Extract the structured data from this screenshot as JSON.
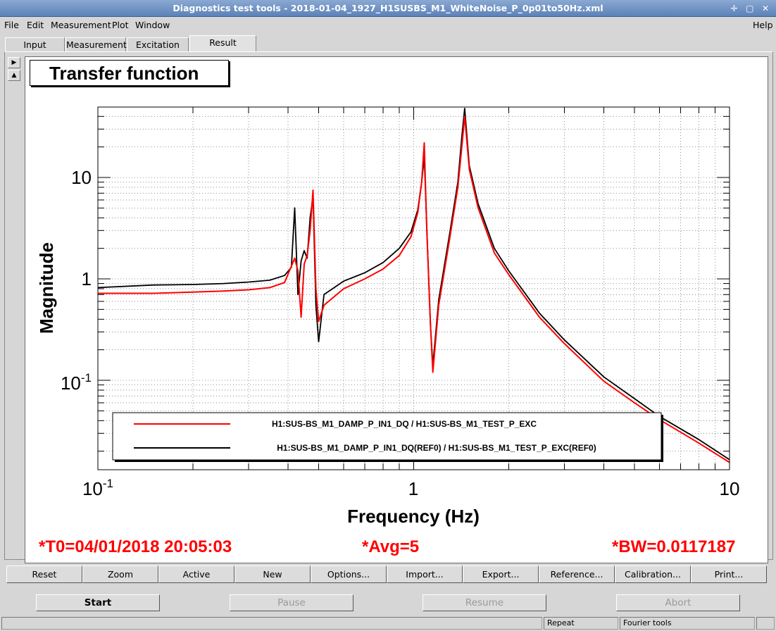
{
  "window": {
    "title": "Diagnostics test tools - 2018-01-04_1927_H1SUSBS_M1_WhiteNoise_P_0p01to50Hz.xml",
    "controls": [
      "✛",
      "▢",
      "✕"
    ]
  },
  "menu": {
    "file": "File",
    "edit": "Edit",
    "measurement": "Measurement",
    "plot": "Plot",
    "window": "Window",
    "help": "Help"
  },
  "tabs": [
    {
      "label": "Input"
    },
    {
      "label": "Measurement"
    },
    {
      "label": "Excitation"
    },
    {
      "label": "Result",
      "active": true
    }
  ],
  "plot": {
    "title": "Transfer function",
    "info": {
      "t0": "*T0=04/01/2018 20:05:03",
      "avg": "*Avg=5",
      "bw": "*BW=0.0117187"
    }
  },
  "chart_data": {
    "type": "line",
    "xlabel": "Frequency (Hz)",
    "ylabel": "Magnitude",
    "xscale": "log",
    "yscale": "log",
    "xlim": [
      0.1,
      10
    ],
    "ylim": [
      0.015,
      50
    ],
    "grid": true,
    "legend_position": "bottom",
    "xticks": [
      {
        "base": "10",
        "exp": "-1"
      },
      {
        "base": "1",
        "exp": ""
      },
      {
        "base": "10",
        "exp": ""
      }
    ],
    "yticks": [
      {
        "value": 10,
        "base": "10",
        "exp": ""
      },
      {
        "value": 1,
        "base": "1",
        "exp": ""
      },
      {
        "value": 0.1,
        "base": "10",
        "exp": "-1"
      }
    ],
    "series": [
      {
        "name": "H1:SUS-BS_M1_DAMP_P_IN1_DQ / H1:SUS-BS_M1_TEST_P_EXC",
        "color": "#ff0000",
        "x": [
          0.1,
          0.15,
          0.2,
          0.25,
          0.3,
          0.35,
          0.39,
          0.42,
          0.43,
          0.44,
          0.45,
          0.46,
          0.47,
          0.48,
          0.49,
          0.5,
          0.52,
          0.6,
          0.7,
          0.8,
          0.9,
          0.98,
          1.03,
          1.06,
          1.08,
          1.1,
          1.13,
          1.15,
          1.2,
          1.3,
          1.38,
          1.42,
          1.45,
          1.5,
          1.6,
          1.8,
          2.0,
          2.5,
          3.0,
          4.0,
          5.0,
          6.0,
          8.0,
          10.0
        ],
        "y": [
          0.72,
          0.72,
          0.74,
          0.76,
          0.78,
          0.82,
          0.92,
          1.6,
          1.2,
          0.42,
          1.4,
          1.7,
          3.0,
          7.5,
          0.8,
          0.38,
          0.55,
          0.8,
          1.0,
          1.25,
          1.7,
          2.6,
          4.5,
          9.0,
          22.0,
          3.0,
          0.35,
          0.12,
          0.55,
          2.5,
          8.0,
          20.0,
          40.0,
          12.0,
          5.0,
          1.8,
          1.1,
          0.42,
          0.23,
          0.098,
          0.06,
          0.041,
          0.024,
          0.0155
        ]
      },
      {
        "name": "H1:SUS-BS_M1_DAMP_P_IN1_DQ(REF0) / H1:SUS-BS_M1_TEST_P_EXC(REF0)",
        "color": "#000000",
        "x": [
          0.1,
          0.15,
          0.2,
          0.25,
          0.3,
          0.35,
          0.39,
          0.41,
          0.42,
          0.43,
          0.44,
          0.45,
          0.46,
          0.47,
          0.48,
          0.49,
          0.5,
          0.52,
          0.6,
          0.7,
          0.8,
          0.9,
          0.98,
          1.03,
          1.06,
          1.08,
          1.1,
          1.13,
          1.15,
          1.2,
          1.3,
          1.38,
          1.42,
          1.45,
          1.5,
          1.6,
          1.8,
          2.0,
          2.5,
          3.0,
          4.0,
          5.0,
          6.0,
          8.0,
          10.0
        ],
        "y": [
          0.82,
          0.87,
          0.88,
          0.9,
          0.93,
          0.97,
          1.08,
          1.3,
          5.0,
          0.7,
          1.5,
          1.9,
          1.6,
          4.0,
          6.5,
          0.55,
          0.24,
          0.7,
          0.95,
          1.15,
          1.45,
          2.0,
          2.9,
          4.8,
          9.0,
          16.0,
          3.2,
          0.35,
          0.14,
          0.62,
          2.8,
          9.0,
          25.0,
          48.0,
          13.0,
          5.5,
          2.0,
          1.2,
          0.46,
          0.25,
          0.108,
          0.066,
          0.044,
          0.026,
          0.0165
        ]
      }
    ]
  },
  "toolbar": [
    "Reset",
    "Zoom",
    "Active",
    "New",
    "Options...",
    "Import...",
    "Export...",
    "Reference...",
    "Calibration...",
    "Print..."
  ],
  "controls": {
    "start": "Start",
    "pause": "Pause",
    "resume": "Resume",
    "abort": "Abort"
  },
  "status": {
    "repeat": "Repeat",
    "fourier": "Fourier tools"
  }
}
